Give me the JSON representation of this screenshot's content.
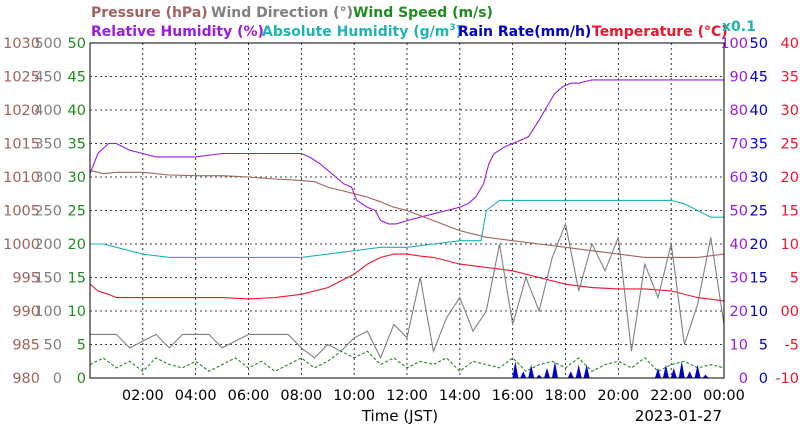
{
  "chart_data": {
    "type": "line",
    "legend": {
      "row1": [
        {
          "name": "Pressure (hPa)",
          "color": "#A0625F"
        },
        {
          "name": "Wind Direction (°)",
          "color": "#808080"
        },
        {
          "name": "Wind Speed (m/s)",
          "color": "#1E8C1E"
        }
      ],
      "row2": [
        {
          "name": "Relative Humidity (%)",
          "color": "#9B1BE0"
        },
        {
          "name": "Absolute Humidity (g/m",
          "sup": "3",
          "close": ")",
          "color": "#1FB3B3"
        },
        {
          "name": "Rain Rate(mm/h)",
          "color": "#0000C8"
        },
        {
          "name": "Temperature (°C)",
          "color": "#F0142D"
        }
      ],
      "multiplier": "x0.1"
    },
    "xlabel": "Time (JST)",
    "date": "2023-01-27",
    "x_range_hours": [
      0,
      24
    ],
    "x_ticks": [
      "02:00",
      "04:00",
      "06:00",
      "08:00",
      "10:00",
      "12:00",
      "14:00",
      "16:00",
      "18:00",
      "20:00",
      "22:00",
      "00:00"
    ],
    "grid": true,
    "axes": {
      "pressure": {
        "ticks": [
          "1030",
          "1025",
          "1020",
          "1015",
          "1010",
          "1005",
          "1000",
          "995",
          "990",
          "985",
          "980"
        ],
        "range": [
          980,
          1030
        ],
        "color": "#A0625F"
      },
      "wind_direction": {
        "ticks": [
          "500",
          "450",
          "400",
          "350",
          "300",
          "250",
          "200",
          "150",
          "100",
          "50",
          "0"
        ],
        "range": [
          0,
          500
        ],
        "color": "#808080"
      },
      "wind_speed": {
        "ticks": [
          "50",
          "45",
          "40",
          "35",
          "30",
          "25",
          "20",
          "15",
          "10",
          "5",
          "0"
        ],
        "range": [
          0,
          50
        ],
        "color": "#1E8C1E"
      },
      "relative_humidity": {
        "ticks": [
          "100",
          "90",
          "80",
          "70",
          "60",
          "50",
          "40",
          "30",
          "20",
          "10",
          "0"
        ],
        "range": [
          0,
          100
        ],
        "color": "#9B1BE0"
      },
      "rain_rate": {
        "ticks": [
          "50",
          "45",
          "40",
          "35",
          "30",
          "25",
          "20",
          "15",
          "10",
          "5",
          "0"
        ],
        "range": [
          0,
          50
        ],
        "color": "#0000C8"
      },
      "temperature": {
        "ticks": [
          "40",
          "35",
          "30",
          "25",
          "20",
          "15",
          "10",
          "5",
          "00",
          "-5",
          "-10"
        ],
        "range": [
          -10,
          40
        ],
        "color": "#F0142D"
      }
    },
    "series": [
      {
        "name": "Relative Humidity (%)",
        "axis": "relative_humidity",
        "color": "#9B1BE0",
        "x": [
          0,
          0.3,
          0.7,
          1.0,
          1.5,
          2.0,
          2.5,
          3.0,
          4.0,
          5.0,
          6.0,
          7.0,
          8.0,
          8.3,
          8.7,
          9.0,
          9.3,
          9.6,
          9.9,
          10.1,
          10.3,
          10.5,
          10.8,
          11.0,
          11.3,
          11.6,
          12.0,
          12.5,
          13.0,
          13.5,
          14.0,
          14.3,
          14.6,
          14.9,
          15.1,
          15.3,
          15.5,
          15.7,
          16.0,
          16.3,
          16.6,
          17.0,
          17.3,
          17.6,
          17.9,
          18.2,
          18.5,
          19.0,
          20.0,
          21.0,
          22.0,
          23.0,
          24.0
        ],
        "y": [
          61,
          67,
          70,
          70,
          68,
          67,
          66,
          66,
          66,
          67,
          67,
          67,
          67,
          66,
          64,
          62,
          60,
          58,
          57,
          53,
          52,
          51,
          50,
          47,
          46,
          46,
          47,
          48,
          49,
          50,
          51,
          52,
          54,
          58,
          64,
          67,
          68,
          69,
          70,
          71,
          72,
          77,
          81,
          85,
          87,
          88,
          88,
          89,
          89,
          89,
          89,
          89,
          89
        ]
      },
      {
        "name": "Pressure (hPa)",
        "axis": "pressure",
        "color": "#A0625F",
        "x": [
          0,
          0.5,
          1.0,
          2.0,
          3.0,
          4.0,
          5.0,
          6.0,
          7.0,
          8.0,
          8.5,
          9.0,
          9.5,
          10.0,
          10.5,
          11.0,
          11.5,
          12.0,
          13.0,
          14.0,
          15.0,
          16.0,
          17.0,
          18.0,
          19.0,
          20.0,
          21.0,
          22.0,
          23.0,
          24.0
        ],
        "y": [
          1011,
          1010.5,
          1010.7,
          1010.7,
          1010.3,
          1010.2,
          1010.2,
          1010,
          1009.7,
          1009.5,
          1009.3,
          1008.5,
          1008,
          1007.5,
          1007,
          1006.3,
          1005.5,
          1005,
          1003.5,
          1002,
          1001,
          1000.5,
          1000,
          999.5,
          999,
          998.5,
          998,
          998,
          998,
          998.5
        ]
      },
      {
        "name": "Absolute Humidity (g/m3)",
        "axis": "relative_humidity",
        "color": "#1FB3B3",
        "x": [
          0,
          0.5,
          1.0,
          2.0,
          3.0,
          4.0,
          5.0,
          6.0,
          7.0,
          8.0,
          9.0,
          10.0,
          11.0,
          12.0,
          13.0,
          14.0,
          14.8,
          15.0,
          15.5,
          16.0,
          17.0,
          18.0,
          19.0,
          20.0,
          21.0,
          22.0,
          22.5,
          23.0,
          23.5,
          24.0
        ],
        "y": [
          40,
          40,
          39,
          37,
          36,
          36,
          36,
          36,
          36,
          36,
          37,
          38,
          39,
          39,
          40,
          41,
          41,
          50,
          53,
          53,
          53,
          53,
          53,
          53,
          53,
          53,
          52,
          50,
          48,
          48
        ]
      },
      {
        "name": "Temperature (°C)",
        "axis": "temperature",
        "color": "#F0142D",
        "x": [
          0,
          0.3,
          0.7,
          1.0,
          2.0,
          3.0,
          4.0,
          5.0,
          6.0,
          7.0,
          8.0,
          9.0,
          9.5,
          10.0,
          10.5,
          11.0,
          11.5,
          12.0,
          12.5,
          13.0,
          14.0,
          15.0,
          16.0,
          17.0,
          18.0,
          19.0,
          20.0,
          21.0,
          22.0,
          23.0,
          24.0
        ],
        "y": [
          4,
          3,
          2.5,
          2,
          2,
          2,
          2,
          2,
          1.8,
          2,
          2.5,
          3.5,
          4.5,
          5.5,
          7,
          8,
          8.5,
          8.5,
          8.2,
          8,
          7,
          6.5,
          6,
          5,
          4,
          3.5,
          3.3,
          3.3,
          3,
          2,
          1.5
        ]
      },
      {
        "name": "Wind Direction (°)",
        "axis": "wind_direction",
        "color": "#808080",
        "x": [
          0,
          1,
          1.5,
          2.5,
          3,
          3.5,
          4.5,
          5,
          6,
          7.5,
          8,
          8.5,
          9,
          9.5,
          10,
          10.5,
          11,
          11.5,
          12,
          12.5,
          13,
          13.5,
          14,
          14.5,
          15,
          15.5,
          16,
          16.5,
          17,
          17.5,
          18,
          18.5,
          19,
          19.5,
          20,
          20.5,
          21,
          21.5,
          22,
          22.5,
          23,
          23.5,
          24
        ],
        "y": [
          65,
          65,
          45,
          65,
          45,
          65,
          65,
          45,
          65,
          65,
          45,
          30,
          50,
          40,
          60,
          70,
          30,
          80,
          60,
          150,
          40,
          90,
          120,
          70,
          100,
          200,
          80,
          150,
          100,
          180,
          230,
          130,
          200,
          160,
          210,
          40,
          170,
          120,
          200,
          50,
          110,
          210,
          80
        ]
      },
      {
        "name": "Wind Speed (m/s)",
        "axis": "wind_speed",
        "color": "#1E8C1E",
        "x": [
          0,
          0.5,
          1,
          1.5,
          2,
          2.5,
          3,
          3.5,
          4,
          4.5,
          5,
          5.5,
          6,
          6.5,
          7,
          7.5,
          8,
          8.5,
          9,
          9.5,
          10,
          10.5,
          11,
          11.5,
          12,
          12.5,
          13,
          13.5,
          14,
          14.5,
          15,
          15.5,
          16,
          16.5,
          17,
          17.5,
          18,
          18.5,
          19,
          19.5,
          20,
          20.5,
          21,
          21.5,
          22,
          22.5,
          23,
          23.5,
          24
        ],
        "y": [
          2,
          3,
          1.5,
          2.5,
          1,
          3,
          2,
          1.5,
          2.5,
          1,
          2,
          3,
          1.5,
          2.5,
          1,
          2,
          3,
          1.5,
          2.5,
          4,
          3,
          4,
          2,
          3,
          1.5,
          2.5,
          2,
          3,
          1,
          2.5,
          2,
          1.5,
          3,
          1,
          2,
          2.5,
          1.5,
          3,
          1,
          2,
          2.5,
          1.5,
          3,
          1,
          2,
          2.5,
          1.5,
          2,
          1.5
        ]
      },
      {
        "name": "Rain Rate(mm/h)",
        "axis": "rain_rate",
        "color": "#0000C8",
        "x": [
          15.8,
          16.1,
          16.4,
          16.7,
          17.0,
          17.3,
          17.6,
          17.9,
          18.2,
          18.5,
          18.8,
          19.1,
          19.4,
          19.7,
          20.0,
          20.3,
          20.6,
          20.9,
          21.2,
          21.5,
          21.8,
          22.1,
          22.4,
          22.7,
          23.0,
          23.3
        ],
        "y": [
          0,
          2.5,
          1,
          2,
          0.5,
          1.5,
          2.5,
          0,
          1,
          2,
          2,
          0,
          0,
          0,
          0,
          0,
          0,
          0,
          0,
          1.5,
          2,
          1.5,
          2.5,
          1,
          2,
          0.5
        ]
      }
    ]
  }
}
